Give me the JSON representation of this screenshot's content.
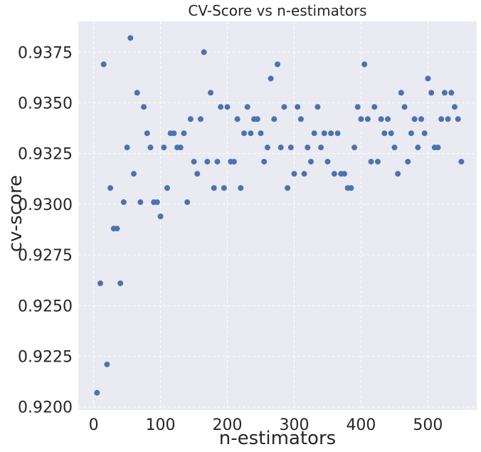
{
  "chart_data": {
    "type": "scatter",
    "title": "CV-Score vs n-estimators",
    "xlabel": "n-estimators",
    "ylabel": "cv-score",
    "xlim": [
      -23,
      573
    ],
    "ylim": [
      0.91985,
      0.93902
    ],
    "xticks": [
      0,
      100,
      200,
      300,
      400,
      500
    ],
    "yticks": [
      0.92,
      0.9225,
      0.925,
      0.9275,
      0.93,
      0.9325,
      0.935,
      0.9375
    ],
    "xtick_labels": [
      "0",
      "100",
      "200",
      "300",
      "400",
      "500"
    ],
    "ytick_labels": [
      "0.9200",
      "0.9225",
      "0.9250",
      "0.9275",
      "0.9300",
      "0.9325",
      "0.9350",
      "0.9375"
    ],
    "grid": true,
    "colors": {
      "background": "#EAEAF2",
      "grid": "#FFFFFF",
      "marker": "#4C72B0"
    },
    "x": [
      5,
      10,
      15,
      20,
      25,
      30,
      35,
      40,
      45,
      50,
      55,
      60,
      65,
      70,
      75,
      80,
      85,
      90,
      95,
      100,
      105,
      110,
      115,
      120,
      125,
      130,
      135,
      140,
      145,
      150,
      155,
      160,
      165,
      170,
      175,
      180,
      185,
      190,
      195,
      200,
      205,
      210,
      215,
      220,
      225,
      230,
      235,
      240,
      245,
      250,
      255,
      260,
      265,
      270,
      275,
      280,
      285,
      290,
      295,
      300,
      305,
      310,
      315,
      320,
      325,
      330,
      335,
      340,
      345,
      350,
      355,
      360,
      365,
      370,
      375,
      380,
      385,
      390,
      395,
      400,
      405,
      410,
      415,
      420,
      425,
      430,
      435,
      440,
      445,
      450,
      455,
      460,
      465,
      470,
      475,
      480,
      485,
      490,
      495,
      500,
      505,
      510,
      515,
      520,
      525,
      530,
      535,
      540,
      545,
      550
    ],
    "y": [
      0.9207,
      0.9261,
      0.9369,
      0.9221,
      0.9308,
      0.9288,
      0.9288,
      0.9261,
      0.9301,
      0.9328,
      0.9382,
      0.9315,
      0.9355,
      0.9301,
      0.9348,
      0.9335,
      0.9328,
      0.9301,
      0.9301,
      0.9294,
      0.9328,
      0.9308,
      0.9335,
      0.9335,
      0.9328,
      0.9328,
      0.9335,
      0.9301,
      0.9342,
      0.9321,
      0.9315,
      0.9342,
      0.9375,
      0.9321,
      0.9355,
      0.9308,
      0.9321,
      0.9348,
      0.9308,
      0.9348,
      0.9321,
      0.9321,
      0.9342,
      0.9308,
      0.9335,
      0.9348,
      0.9335,
      0.9342,
      0.9342,
      0.9335,
      0.9321,
      0.9328,
      0.9362,
      0.9342,
      0.9369,
      0.9328,
      0.9348,
      0.9308,
      0.9328,
      0.9315,
      0.9348,
      0.9342,
      0.9315,
      0.9328,
      0.9321,
      0.9335,
      0.9348,
      0.9328,
      0.9335,
      0.9321,
      0.9335,
      0.9315,
      0.9335,
      0.9315,
      0.9315,
      0.9308,
      0.9308,
      0.9328,
      0.9348,
      0.9342,
      0.9369,
      0.9342,
      0.9321,
      0.9348,
      0.9321,
      0.9342,
      0.9335,
      0.9342,
      0.9335,
      0.9328,
      0.9315,
      0.9355,
      0.9348,
      0.9321,
      0.9335,
      0.9342,
      0.9328,
      0.9342,
      0.9335,
      0.9362,
      0.9355,
      0.9328,
      0.9328,
      0.9342,
      0.9355,
      0.9342,
      0.9355,
      0.9348,
      0.9342,
      0.9321
    ]
  }
}
